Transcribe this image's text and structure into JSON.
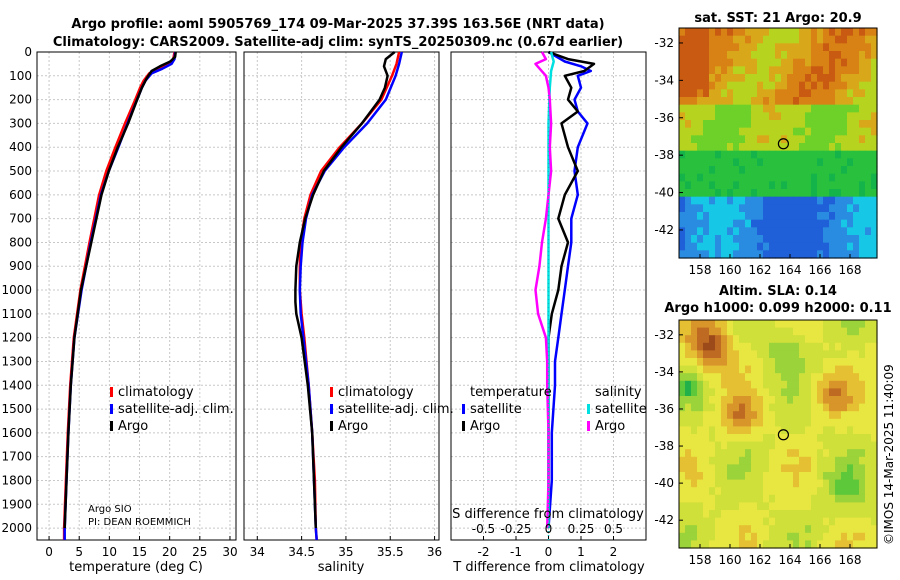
{
  "header": {
    "line1": "Argo profile: aoml 5905769_174 09-Mar-2025 37.39S 163.56E (NRT data)",
    "line2": "Climatology: CARS2009. Satellite-adj clim: synTS_20250309.nc (0.67d earlier)"
  },
  "colors": {
    "climatology": "#ff0000",
    "satellite_adj": "#0000ff",
    "argo": "#000000",
    "sat_salinity": "#00e0e0",
    "argo_salinity": "#ff00ff"
  },
  "chart_data": [
    {
      "type": "line",
      "name": "temperature-profile",
      "xlabel": "temperature (deg C)",
      "ylabel": "",
      "xlim": [
        -2,
        31
      ],
      "ylim": [
        2050,
        0
      ],
      "xticks": [
        0,
        5,
        10,
        15,
        20,
        25,
        30
      ],
      "yticks": [
        0,
        100,
        200,
        300,
        400,
        500,
        600,
        700,
        800,
        900,
        1000,
        1100,
        1200,
        1300,
        1400,
        1500,
        1600,
        1700,
        1800,
        1900,
        2000
      ],
      "legend": [
        "climatology",
        "satellite-adj. clim.",
        "Argo"
      ],
      "annotations": [
        "Argo SIO",
        "PI: DEAN ROEMMICH"
      ],
      "series": [
        {
          "name": "climatology",
          "depth": [
            0,
            30,
            50,
            70,
            90,
            120,
            150,
            200,
            300,
            400,
            500,
            600,
            800,
            1000,
            1200,
            1400,
            1600,
            1800,
            2000,
            2050
          ],
          "values": [
            20.8,
            20.6,
            19.8,
            18.2,
            16.6,
            15.7,
            15.1,
            14.3,
            12.6,
            11.0,
            9.5,
            8.3,
            6.7,
            5.2,
            4.1,
            3.5,
            3.1,
            2.8,
            2.5,
            2.5
          ]
        },
        {
          "name": "satellite-adj. clim.",
          "depth": [
            0,
            30,
            50,
            70,
            90,
            120,
            150,
            200,
            300,
            400,
            500,
            600,
            800,
            1000,
            1200,
            1400,
            1600,
            1800,
            2000,
            2050
          ],
          "values": [
            20.9,
            20.8,
            20.3,
            18.8,
            17.0,
            16.0,
            15.4,
            14.6,
            13.0,
            11.5,
            9.9,
            8.6,
            6.9,
            5.4,
            4.2,
            3.6,
            3.2,
            2.9,
            2.6,
            2.6
          ]
        },
        {
          "name": "Argo",
          "depth": [
            0,
            20,
            40,
            60,
            80,
            110,
            150,
            200,
            300,
            400,
            500,
            600,
            800,
            1000,
            1200,
            1400,
            1600,
            1800,
            2000
          ],
          "values": [
            21.0,
            20.9,
            20.1,
            18.4,
            17.0,
            16.2,
            15.4,
            14.6,
            13.1,
            11.4,
            9.9,
            8.7,
            7.0,
            5.3,
            4.2,
            3.6,
            3.2,
            2.9,
            2.6
          ]
        }
      ]
    },
    {
      "type": "line",
      "name": "salinity-profile",
      "xlabel": "salinity",
      "xlim": [
        33.85,
        36.05
      ],
      "ylim": [
        2050,
        0
      ],
      "xticks": [
        34,
        34.5,
        35,
        35.5,
        36
      ],
      "legend": [
        "climatology",
        "satellite-adj. clim.",
        "Argo"
      ],
      "series": [
        {
          "name": "climatology",
          "depth": [
            0,
            50,
            100,
            200,
            300,
            400,
            500,
            600,
            700,
            800,
            900,
            1000,
            1100,
            1200,
            1400,
            1600,
            1800,
            2000,
            2050
          ],
          "values": [
            35.6,
            35.57,
            35.52,
            35.4,
            35.18,
            34.93,
            34.72,
            34.6,
            34.53,
            34.49,
            34.48,
            34.48,
            34.5,
            34.53,
            34.58,
            34.62,
            34.65,
            34.66,
            34.67
          ]
        },
        {
          "name": "satellite-adj. clim.",
          "depth": [
            0,
            50,
            100,
            200,
            300,
            400,
            500,
            600,
            700,
            800,
            900,
            1000,
            1100,
            1200,
            1400,
            1600,
            1800,
            2000,
            2050
          ],
          "values": [
            35.63,
            35.6,
            35.56,
            35.45,
            35.24,
            34.98,
            34.76,
            34.62,
            34.55,
            34.51,
            34.49,
            34.48,
            34.49,
            34.52,
            34.58,
            34.62,
            34.64,
            34.66,
            34.67
          ]
        },
        {
          "name": "Argo",
          "depth": [
            0,
            30,
            60,
            100,
            150,
            200,
            300,
            400,
            500,
            600,
            700,
            800,
            900,
            1000,
            1050,
            1100,
            1200,
            1400,
            1600,
            1800,
            2000
          ],
          "values": [
            35.55,
            35.45,
            35.43,
            35.47,
            35.44,
            35.38,
            35.18,
            34.95,
            34.75,
            34.63,
            34.54,
            34.48,
            34.44,
            34.43,
            34.43,
            34.44,
            34.5,
            34.57,
            34.62,
            34.64,
            34.66
          ]
        }
      ]
    },
    {
      "type": "line",
      "name": "difference-profile",
      "xlabel": "T difference from climatology",
      "xlabel2": "S difference from climatology",
      "xlim": [
        -3,
        3
      ],
      "ylim": [
        2050,
        0
      ],
      "xticks": [
        -2,
        -1,
        0,
        1,
        2
      ],
      "xticks2": [
        "-0.5",
        "-0.25",
        "0",
        "0.25",
        "0.5"
      ],
      "legend_temperature_title": "temperature",
      "legend_salinity_title": "salinity",
      "legend_temperature": [
        "satellite",
        "Argo"
      ],
      "legend_salinity": [
        "satellite",
        "Argo"
      ],
      "series": [
        {
          "name": "T satellite",
          "depth": [
            0,
            40,
            60,
            80,
            100,
            150,
            200,
            250,
            300,
            400,
            500,
            600,
            700,
            800,
            900,
            1000,
            1100,
            1200,
            1300,
            1400,
            1600,
            1800,
            2000
          ],
          "values": [
            0.0,
            0.5,
            1.0,
            1.3,
            0.9,
            1.0,
            0.8,
            0.9,
            1.2,
            0.9,
            0.8,
            0.9,
            0.7,
            0.7,
            0.6,
            0.5,
            0.4,
            0.3,
            0.2,
            0.2,
            0.1,
            0.1,
            0.0
          ]
        },
        {
          "name": "T Argo",
          "depth": [
            0,
            30,
            50,
            80,
            100,
            150,
            200,
            250,
            300,
            400,
            500,
            600,
            700,
            800,
            900,
            1000,
            1100,
            1200,
            1300,
            1400,
            1600,
            1800,
            2000
          ],
          "values": [
            0.0,
            0.6,
            1.4,
            1.1,
            0.5,
            0.7,
            0.6,
            0.9,
            0.4,
            0.6,
            0.9,
            0.5,
            0.3,
            0.6,
            0.4,
            0.3,
            0.1,
            0.0,
            0.0,
            0.0,
            0.0,
            0.0,
            0.0
          ]
        },
        {
          "name": "S satellite",
          "depth": [
            0,
            40,
            80,
            150,
            300,
            500,
            700,
            1000,
            1500,
            2000
          ],
          "values": [
            0.02,
            0.04,
            0.02,
            0.01,
            0.0,
            0.0,
            0.0,
            0.0,
            0.0,
            0.0
          ]
        },
        {
          "name": "S Argo",
          "depth": [
            0,
            30,
            50,
            100,
            150,
            200,
            300,
            400,
            500,
            600,
            700,
            800,
            900,
            1000,
            1100,
            1200,
            1300,
            1400,
            1600,
            1800,
            2000
          ],
          "values": [
            -0.05,
            -0.02,
            -0.1,
            -0.02,
            0.0,
            0.01,
            0.02,
            0.01,
            0.02,
            0.0,
            -0.02,
            -0.05,
            -0.07,
            -0.1,
            -0.08,
            -0.02,
            -0.01,
            -0.01,
            0.0,
            0.0,
            -0.01
          ]
        }
      ]
    },
    {
      "type": "heatmap",
      "name": "sst-map",
      "title": "sat. SST: 21 Argo: 20.9",
      "xlim": [
        156.6,
        169.8
      ],
      "ylim": [
        -43.5,
        -31.2
      ],
      "xticks": [
        158,
        160,
        162,
        164,
        166,
        168
      ],
      "yticks": [
        -32,
        -34,
        -36,
        -38,
        -40,
        -42
      ],
      "marker": {
        "lon": 163.56,
        "lat": -37.39
      }
    },
    {
      "type": "heatmap",
      "name": "sla-map",
      "title": "Altim. SLA: 0.14",
      "subtitle": "Argo h1000: 0.099 h2000: 0.11",
      "xlim": [
        156.6,
        169.8
      ],
      "ylim": [
        -43.5,
        -31.2
      ],
      "xticks": [
        158,
        160,
        162,
        164,
        166,
        168
      ],
      "yticks": [
        -32,
        -34,
        -36,
        -38,
        -40,
        -42
      ],
      "marker": {
        "lon": 163.56,
        "lat": -37.39
      }
    }
  ],
  "credit": "©IMOS 14-Mar-2025 11:40:09"
}
